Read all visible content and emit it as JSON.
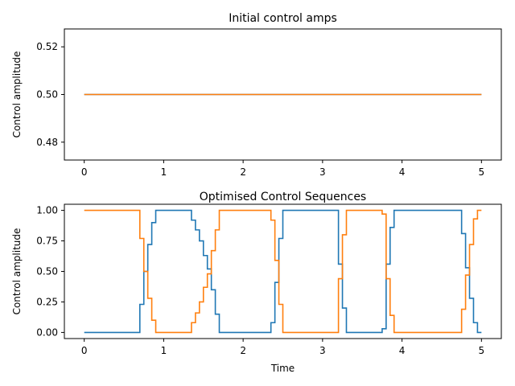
{
  "chart_data": [
    {
      "type": "line",
      "title": "Initial control amps",
      "xlabel": "",
      "ylabel": "Control amplitude",
      "xlim": [
        -0.25,
        5.25
      ],
      "ylim": [
        0.4725,
        0.5275
      ],
      "xticks": [
        "0",
        "1",
        "2",
        "3",
        "4",
        "5"
      ],
      "yticks": [
        "0.48",
        "0.50",
        "0.52"
      ],
      "grid": false,
      "series": [
        {
          "color": "#1f77b4",
          "x": [
            0,
            5
          ],
          "y": [
            0.5,
            0.5
          ]
        },
        {
          "color": "#ff7f0e",
          "x": [
            0,
            5
          ],
          "y": [
            0.5,
            0.5
          ]
        }
      ]
    },
    {
      "type": "line",
      "step": "post",
      "title": "Optimised Control Sequences",
      "xlabel": "Time",
      "ylabel": "Control amplitude",
      "xlim": [
        -0.25,
        5.25
      ],
      "ylim": [
        -0.05,
        1.05
      ],
      "xticks": [
        "0",
        "1",
        "2",
        "3",
        "4",
        "5"
      ],
      "yticks": [
        "0.00",
        "0.25",
        "0.50",
        "0.75",
        "1.00"
      ],
      "grid": false,
      "series": [
        {
          "color": "#1f77b4",
          "x": [
            0,
            0.7,
            0.75,
            0.8,
            0.85,
            0.9,
            1.35,
            1.4,
            1.45,
            1.5,
            1.55,
            1.6,
            1.65,
            1.7,
            2.35,
            2.4,
            2.45,
            2.5,
            3.2,
            3.25,
            3.3,
            3.35,
            3.75,
            3.8,
            3.85,
            3.9,
            4.75,
            4.8,
            4.85,
            4.9,
            4.95,
            5.0
          ],
          "y": [
            0.0,
            0.23,
            0.5,
            0.72,
            0.9,
            1.0,
            0.92,
            0.84,
            0.75,
            0.63,
            0.52,
            0.35,
            0.15,
            0.0,
            0.08,
            0.41,
            0.77,
            1.0,
            0.56,
            0.2,
            0.0,
            0.0,
            0.03,
            0.56,
            0.86,
            1.0,
            0.81,
            0.53,
            0.28,
            0.08,
            0.0,
            0.0
          ]
        },
        {
          "color": "#ff7f0e",
          "x": [
            0,
            0.7,
            0.75,
            0.8,
            0.85,
            0.9,
            1.35,
            1.4,
            1.45,
            1.5,
            1.55,
            1.6,
            1.65,
            1.7,
            2.35,
            2.4,
            2.45,
            2.5,
            3.2,
            3.25,
            3.3,
            3.35,
            3.75,
            3.8,
            3.85,
            3.9,
            4.75,
            4.8,
            4.85,
            4.9,
            4.95,
            5.0
          ],
          "y": [
            1.0,
            0.77,
            0.5,
            0.28,
            0.1,
            0.0,
            0.08,
            0.16,
            0.25,
            0.37,
            0.48,
            0.67,
            0.84,
            1.0,
            0.92,
            0.59,
            0.23,
            0.0,
            0.44,
            0.8,
            1.0,
            1.0,
            0.97,
            0.44,
            0.14,
            0.0,
            0.19,
            0.47,
            0.72,
            0.93,
            1.0,
            1.0
          ]
        }
      ]
    }
  ]
}
